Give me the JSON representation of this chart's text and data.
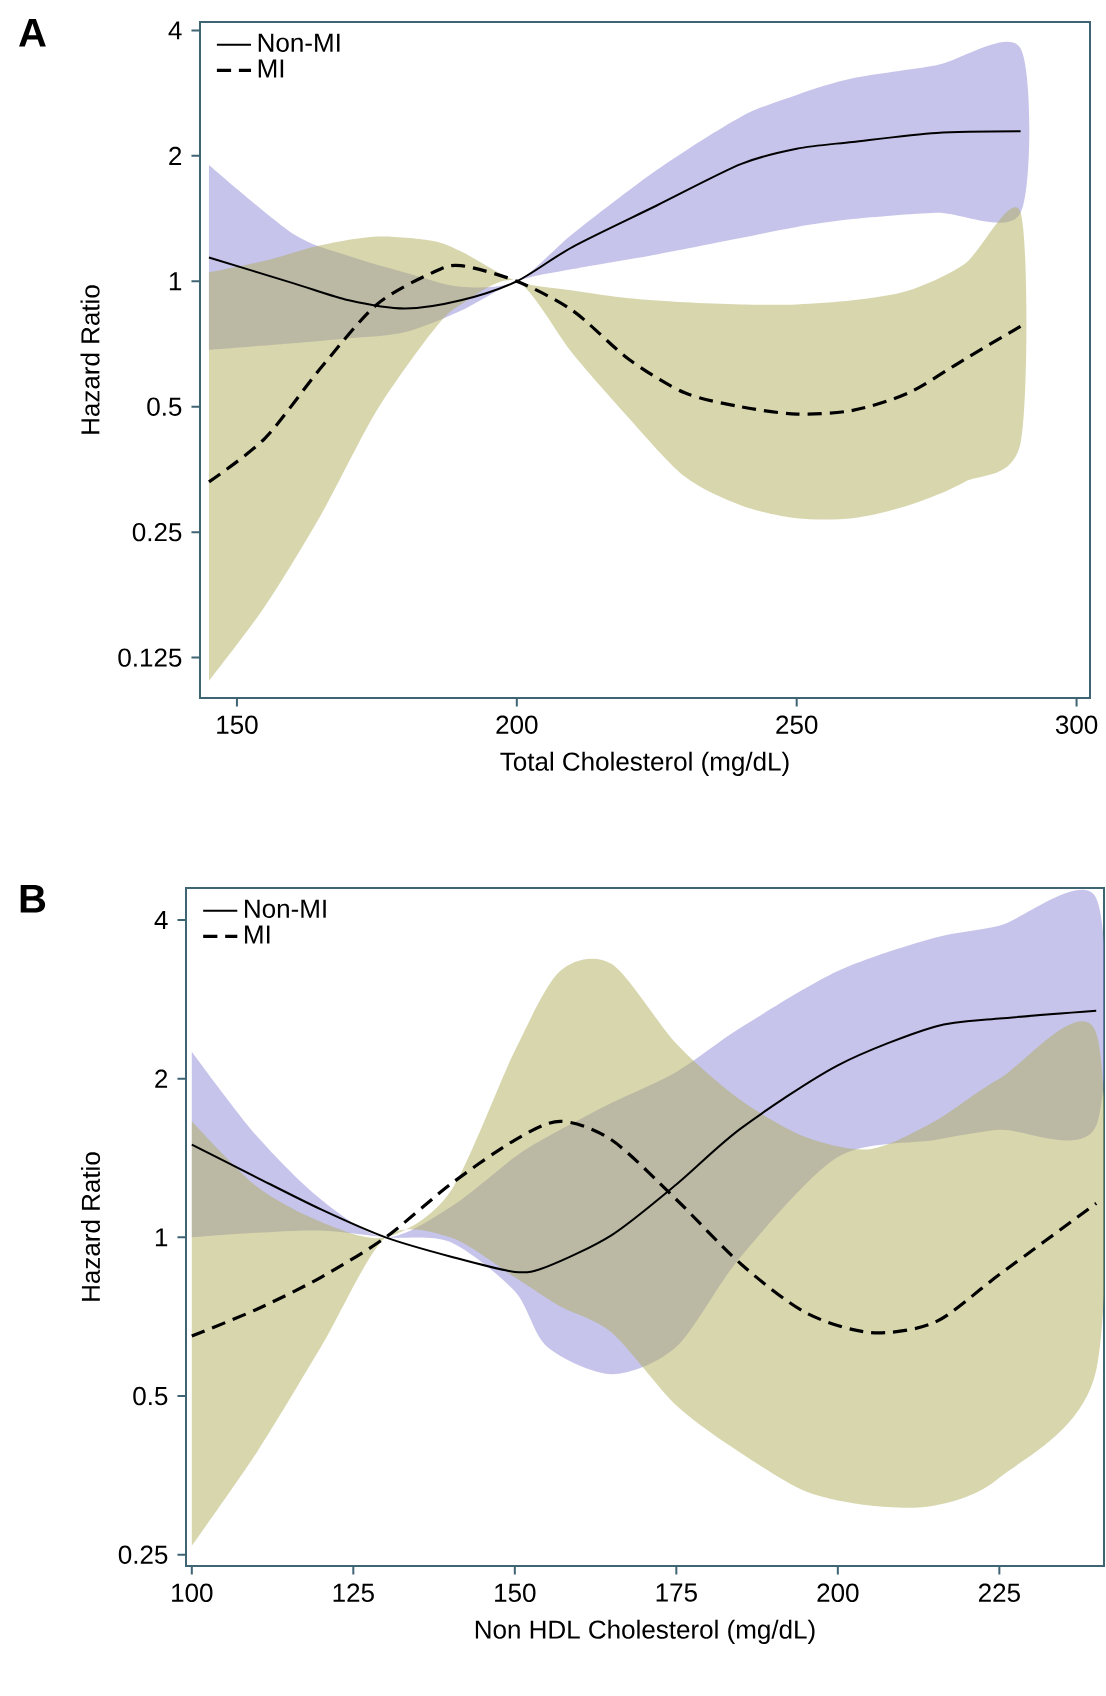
{
  "chart_data": [
    {
      "type": "line",
      "title": "A",
      "xlabel": "Total Cholesterol (mg/dL)",
      "ylabel": "Hazard Ratio",
      "log": "y",
      "legend": "top left",
      "xlim": [
        143.4,
        302.4
      ],
      "ylim": [
        0.1,
        4.19
      ],
      "xticks": [
        150,
        200,
        250,
        300
      ],
      "yticks": [
        0.125,
        0.25,
        0.5,
        1,
        2,
        4
      ],
      "series": [
        {
          "name": "Non-MI",
          "color": "#000000",
          "line_style": "solid",
          "x": [
            145,
            160,
            170,
            180,
            190,
            200,
            210,
            225,
            240,
            250,
            260,
            275,
            290
          ],
          "values": [
            1.14,
            0.99,
            0.9,
            0.86,
            0.9,
            1,
            1.21,
            1.52,
            1.91,
            2.08,
            2.16,
            2.27,
            2.29
          ],
          "upper": [
            1.9,
            1.3,
            1.15,
            1.05,
            0.97,
            1,
            1.3,
            1.85,
            2.48,
            2.8,
            3.07,
            3.3,
            3.62
          ],
          "lower": [
            0.685,
            0.71,
            0.73,
            0.755,
            0.85,
            1,
            1.07,
            1.16,
            1.27,
            1.35,
            1.41,
            1.46,
            1.46
          ]
        },
        {
          "name": "MI",
          "color": "#000000",
          "line_style": "dashed",
          "x": [
            145,
            155,
            165,
            175,
            185,
            190,
            200,
            210,
            220,
            230,
            240,
            250,
            260,
            270,
            280,
            290
          ],
          "values": [
            0.33,
            0.42,
            0.62,
            0.88,
            1.05,
            1.09,
            1,
            0.85,
            0.65,
            0.54,
            0.5,
            0.48,
            0.49,
            0.54,
            0.65,
            0.78
          ],
          "upper": [
            1.05,
            1.12,
            1.22,
            1.28,
            1.25,
            1.18,
            1,
            0.95,
            0.91,
            0.89,
            0.88,
            0.88,
            0.9,
            0.95,
            1.1,
            1.46
          ],
          "lower": [
            0.11,
            0.166,
            0.275,
            0.49,
            0.76,
            0.88,
            1,
            0.67,
            0.47,
            0.34,
            0.29,
            0.27,
            0.27,
            0.29,
            0.33,
            0.41
          ]
        }
      ]
    },
    {
      "type": "line",
      "title": "B",
      "xlabel": "Non HDL Cholesterol (mg/dL)",
      "ylabel": "Hazard Ratio",
      "log": "y",
      "legend": "top left",
      "xlim": [
        99.1,
        241.2
      ],
      "ylim": [
        0.238,
        4.6
      ],
      "xticks": [
        100,
        125,
        150,
        175,
        200,
        225
      ],
      "yticks": [
        0.25,
        0.5,
        1,
        2,
        4
      ],
      "series": [
        {
          "name": "Non-MI",
          "color": "#000000",
          "line_style": "solid",
          "x": [
            100,
            110,
            120,
            130,
            140,
            150,
            155,
            165,
            175,
            185,
            200,
            215,
            225,
            240
          ],
          "values": [
            1.5,
            1.3,
            1.13,
            1,
            0.92,
            0.86,
            0.88,
            1.01,
            1.26,
            1.61,
            2.12,
            2.51,
            2.6,
            2.69
          ],
          "upper": [
            2.25,
            1.56,
            1.18,
            1,
            1.14,
            1.42,
            1.55,
            1.8,
            2.06,
            2.5,
            3.2,
            3.7,
            3.9,
            4.4
          ],
          "lower": [
            1,
            1.02,
            1.03,
            1,
            0.98,
            0.79,
            0.62,
            0.55,
            0.62,
            0.92,
            1.42,
            1.53,
            1.6,
            1.63
          ]
        },
        {
          "name": "MI",
          "color": "#000000",
          "line_style": "dashed",
          "x": [
            100,
            110,
            120,
            130,
            140,
            150,
            157,
            165,
            175,
            185,
            195,
            205,
            215,
            225,
            240
          ],
          "values": [
            0.65,
            0.73,
            0.84,
            1,
            1.26,
            1.53,
            1.66,
            1.53,
            1.18,
            0.89,
            0.72,
            0.66,
            0.69,
            0.85,
            1.16
          ],
          "upper": [
            1.66,
            1.25,
            1.07,
            1,
            1.22,
            2.26,
            3.2,
            3.3,
            2.33,
            1.82,
            1.55,
            1.47,
            1.66,
            2.0,
            2.44
          ],
          "lower": [
            0.26,
            0.39,
            0.62,
            1,
            1,
            0.84,
            0.74,
            0.66,
            0.48,
            0.39,
            0.33,
            0.31,
            0.31,
            0.35,
            0.56
          ]
        }
      ]
    }
  ]
}
